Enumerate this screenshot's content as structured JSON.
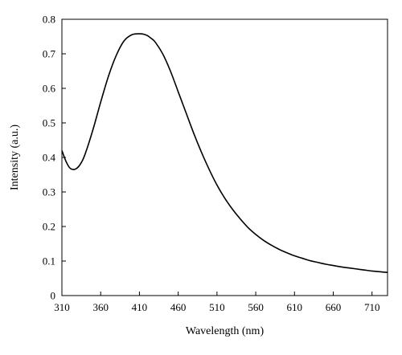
{
  "chart_data": {
    "type": "line",
    "title": "",
    "xlabel": "Wavelength (nm)",
    "ylabel": "Intensity (a.u.)",
    "xlim": [
      310,
      730
    ],
    "ylim": [
      0,
      0.8
    ],
    "xticks": [
      310,
      360,
      410,
      460,
      510,
      560,
      610,
      660,
      710
    ],
    "yticks": [
      0,
      0.1,
      0.2,
      0.3,
      0.4,
      0.5,
      0.6,
      0.7,
      0.8
    ],
    "ytick_labels": [
      "0",
      "0.1",
      "0.2",
      "0.3",
      "0.4",
      "0.5",
      "0.6",
      "0.7",
      "0.8"
    ],
    "grid": false,
    "legend": "none",
    "line_color": "#000000",
    "series": [
      {
        "x": [
          310,
          315,
          320,
          325,
          330,
          335,
          340,
          350,
          360,
          370,
          380,
          390,
          400,
          410,
          415,
          420,
          425,
          430,
          440,
          450,
          460,
          470,
          480,
          490,
          500,
          510,
          520,
          530,
          540,
          550,
          560,
          570,
          580,
          590,
          600,
          610,
          620,
          630,
          640,
          650,
          660,
          670,
          680,
          690,
          700,
          710,
          720,
          730
        ],
        "y": [
          0.42,
          0.39,
          0.37,
          0.365,
          0.37,
          0.385,
          0.41,
          0.48,
          0.56,
          0.635,
          0.695,
          0.737,
          0.755,
          0.758,
          0.757,
          0.753,
          0.745,
          0.735,
          0.7,
          0.65,
          0.59,
          0.53,
          0.47,
          0.415,
          0.365,
          0.32,
          0.282,
          0.25,
          0.222,
          0.197,
          0.177,
          0.16,
          0.146,
          0.134,
          0.124,
          0.115,
          0.108,
          0.101,
          0.096,
          0.091,
          0.087,
          0.083,
          0.08,
          0.077,
          0.074,
          0.071,
          0.069,
          0.067
        ]
      }
    ]
  }
}
